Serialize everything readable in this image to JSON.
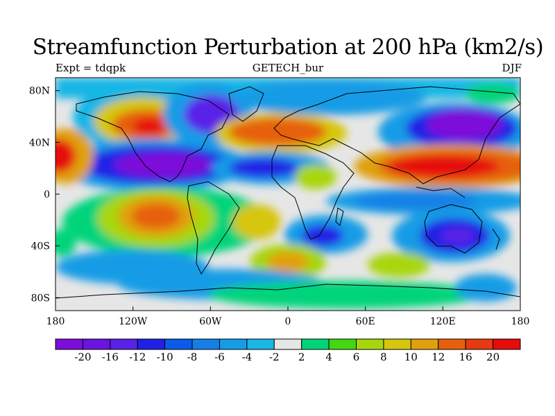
{
  "title": "Streamfunction Perturbation at 200 hPa (km2/s)",
  "left_label": "Expt = tdqpk",
  "center_label": "GETECH_bur",
  "right_label": "DJF",
  "x_tick_labels": [
    "180",
    "120W",
    "60W",
    "0",
    "60E",
    "120E",
    "180"
  ],
  "y_tick_labels": [
    "80N",
    "40N",
    "0",
    "40S",
    "80S"
  ],
  "colorbar": {
    "labels": [
      "-20",
      "-16",
      "-12",
      "-10",
      "-8",
      "-6",
      "-4",
      "-2",
      "2",
      "4",
      "6",
      "8",
      "10",
      "12",
      "16",
      "20"
    ],
    "colors": [
      "#7d0ed9",
      "#6a14e0",
      "#5a21e8",
      "#2020e6",
      "#0b5bea",
      "#1480e6",
      "#169ce6",
      "#19b6e6",
      "#e6e6e6",
      "#00d47a",
      "#43d70f",
      "#a8d60c",
      "#d6c60c",
      "#e0a00c",
      "#e6600c",
      "#e63a10",
      "#e60c0c"
    ]
  },
  "map_colors": {
    "land_outline": "#000000",
    "neutral": "#e6e6e6"
  }
}
